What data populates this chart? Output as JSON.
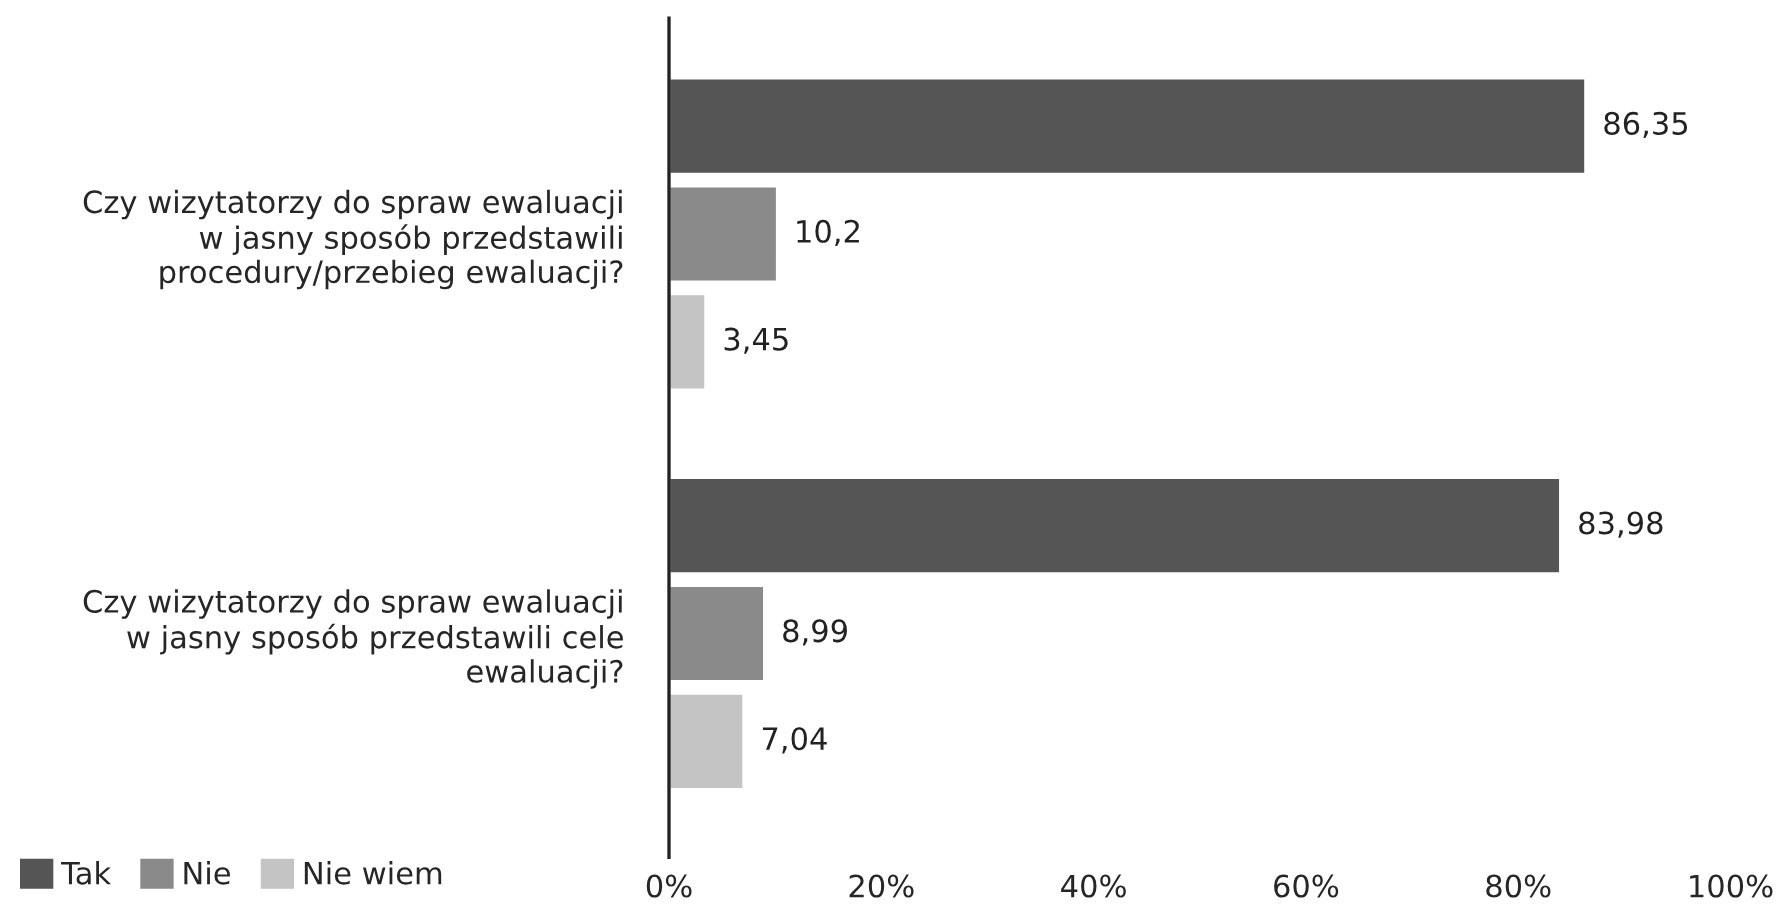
{
  "chart_data": {
    "type": "bar",
    "orientation": "horizontal",
    "categories": [
      "Czy wizytatorzy do spraw ewaluacji\nw jasny sposób przedstawili\nprocedury/przebieg ewaluacji?",
      "Czy wizytatorzy do spraw ewaluacji\nw jasny sposób przedstawili cele\newaluacji?"
    ],
    "series": [
      {
        "name": "Tak",
        "color": "#555555",
        "values": [
          86.35,
          83.98
        ],
        "value_labels": [
          "86,35",
          "83,98"
        ]
      },
      {
        "name": "Nie",
        "color": "#8a8a8a",
        "values": [
          10.2,
          8.99
        ],
        "value_labels": [
          "10,2",
          "8,99"
        ]
      },
      {
        "name": "Nie wiem",
        "color": "#c4c4c4",
        "values": [
          3.45,
          7.04
        ],
        "value_labels": [
          "3,45",
          "7,04"
        ]
      }
    ],
    "xlim": [
      0,
      100
    ],
    "xticks": [
      {
        "value": 0,
        "label": "0%"
      },
      {
        "value": 20,
        "label": "20%"
      },
      {
        "value": 40,
        "label": "40%"
      },
      {
        "value": 60,
        "label": "60%"
      },
      {
        "value": 80,
        "label": "80%"
      },
      {
        "value": 100,
        "label": "100%"
      }
    ],
    "grid": false,
    "legend": "bottom left"
  }
}
